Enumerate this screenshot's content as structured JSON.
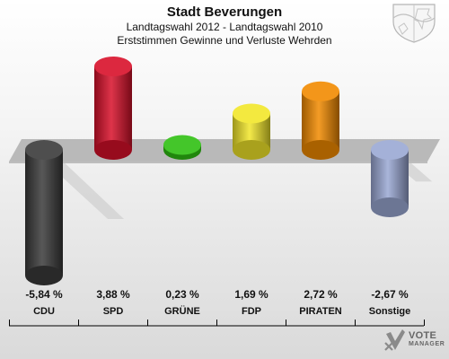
{
  "header": {
    "title": "Stadt Beverungen",
    "subtitle": "Landtagswahl 2012 - Landtagswahl 2010",
    "description": "Erststimmen Gewinne und Verluste Wehrden"
  },
  "brand": {
    "line1": "VOTE",
    "line2": "MANAGER"
  },
  "chart_data": {
    "type": "bar",
    "categories": [
      "CDU",
      "SPD",
      "GRÜNE",
      "FDP",
      "PIRATEN",
      "Sonstige"
    ],
    "values": [
      -5.84,
      3.88,
      0.23,
      1.69,
      2.72,
      -2.67
    ],
    "value_labels": [
      "-5,84 %",
      "3,88 %",
      "0,23 %",
      "1,69 %",
      "2,72 %",
      "-2,67 %"
    ],
    "colors": [
      "#3a3a3a",
      "#d8102a",
      "#2fc012",
      "#f2e62a",
      "#f28a00",
      "#9aa8d4"
    ],
    "unit": "%",
    "ylim": [
      -5.84,
      3.88
    ],
    "grid": false,
    "legend": "none"
  }
}
